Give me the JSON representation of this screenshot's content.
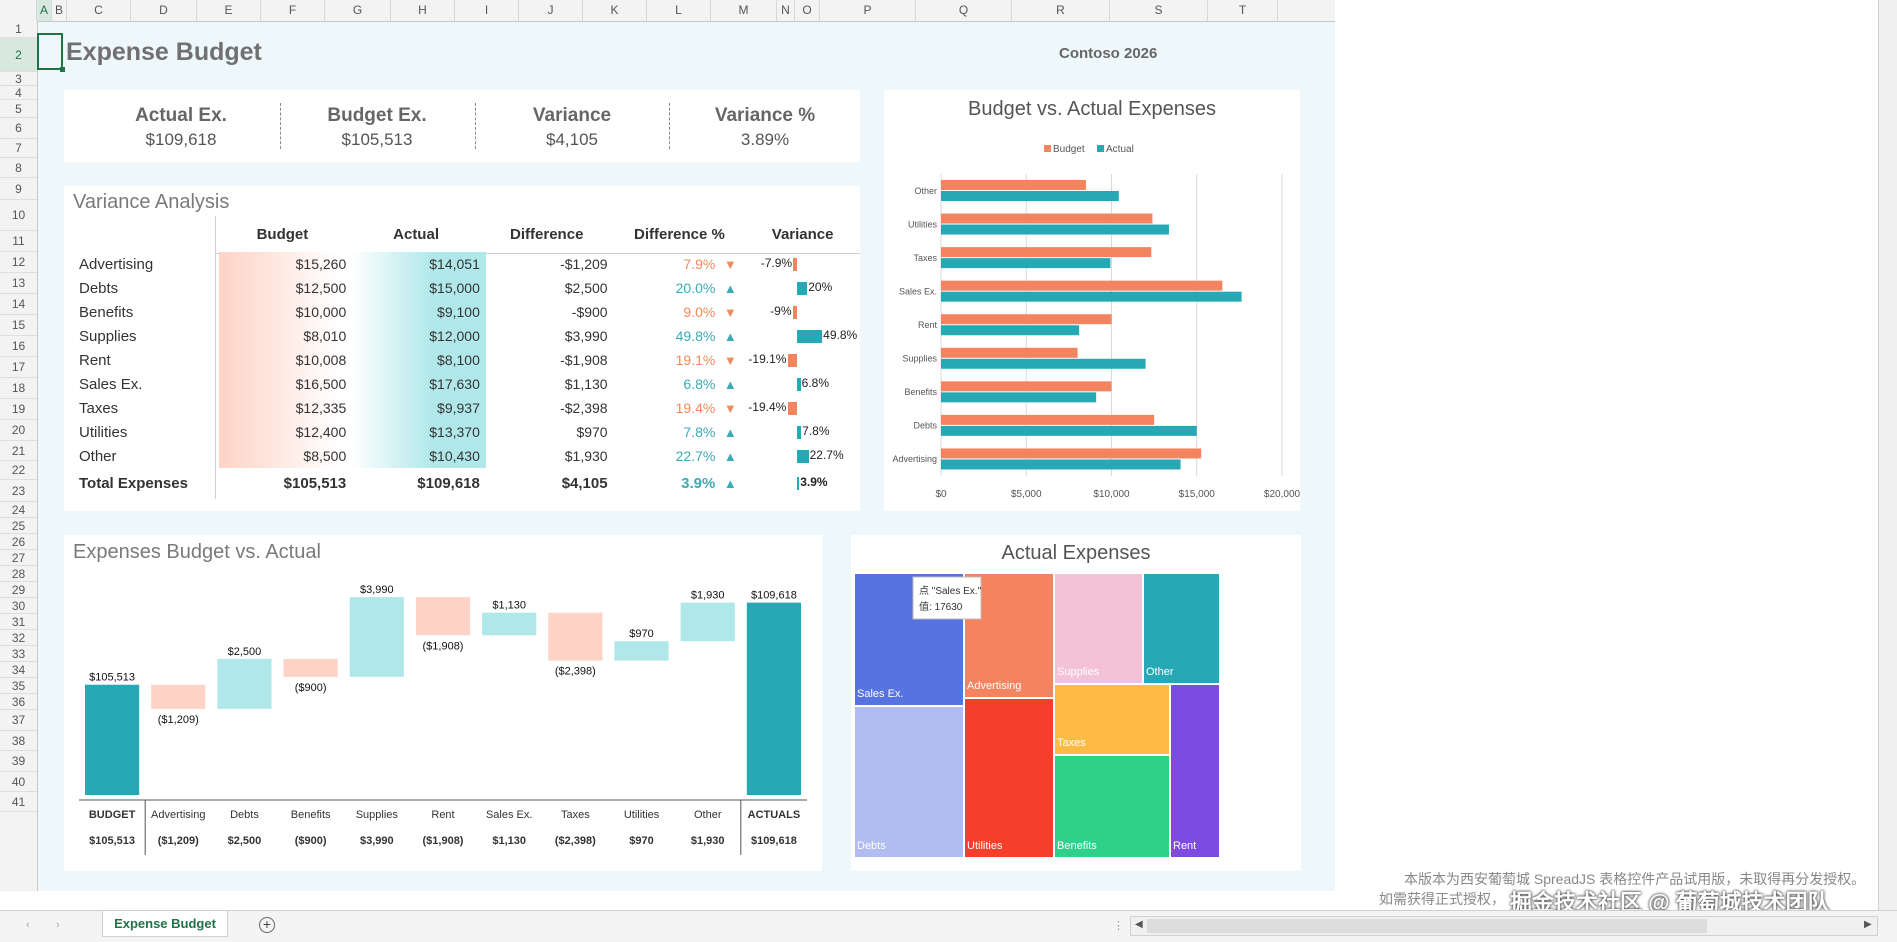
{
  "columns": [
    "A",
    "B",
    "C",
    "D",
    "E",
    "F",
    "G",
    "H",
    "I",
    "J",
    "K",
    "L",
    "M",
    "N",
    "O",
    "P",
    "Q",
    "R",
    "S",
    "T"
  ],
  "rows": [
    "1",
    "2",
    "3",
    "4",
    "5",
    "6",
    "7",
    "8",
    "9",
    "10",
    "11",
    "12",
    "13",
    "14",
    "15",
    "16",
    "17",
    "18",
    "19",
    "20",
    "21",
    "22",
    "23",
    "24",
    "25",
    "26",
    "27",
    "28",
    "29",
    "30",
    "31",
    "32",
    "33",
    "34",
    "35",
    "36",
    "37",
    "38",
    "39",
    "40",
    "41"
  ],
  "title": "Expense Budget",
  "subtitle": "Contoso 2026",
  "kpis": [
    {
      "label": "Actual Ex.",
      "value": "$109,618"
    },
    {
      "label": "Budget Ex.",
      "value": "$105,513"
    },
    {
      "label": "Variance",
      "value": "$4,105"
    },
    {
      "label": "Variance %",
      "value": "3.89%"
    }
  ],
  "variance_analysis": {
    "title": "Variance Analysis",
    "headers": [
      "Budget",
      "Actual",
      "Difference",
      "Difference %",
      "Variance"
    ],
    "rows": [
      {
        "name": "Advertising",
        "budget": "$15,260",
        "actual": "$14,051",
        "difference": "-$1,209",
        "pct": "7.9%",
        "dir": "down",
        "variance": "-7.9%",
        "vnum": -7.9
      },
      {
        "name": "Debts",
        "budget": "$12,500",
        "actual": "$15,000",
        "difference": "$2,500",
        "pct": "20.0%",
        "dir": "up",
        "variance": "20%",
        "vnum": 20.0
      },
      {
        "name": "Benefits",
        "budget": "$10,000",
        "actual": "$9,100",
        "difference": "-$900",
        "pct": "9.0%",
        "dir": "down",
        "variance": "-9%",
        "vnum": -9.0
      },
      {
        "name": "Supplies",
        "budget": "$8,010",
        "actual": "$12,000",
        "difference": "$3,990",
        "pct": "49.8%",
        "dir": "up",
        "variance": "49.8%",
        "vnum": 49.8
      },
      {
        "name": "Rent",
        "budget": "$10,008",
        "actual": "$8,100",
        "difference": "-$1,908",
        "pct": "19.1%",
        "dir": "down",
        "variance": "-19.1%",
        "vnum": -19.1
      },
      {
        "name": "Sales Ex.",
        "budget": "$16,500",
        "actual": "$17,630",
        "difference": "$1,130",
        "pct": "6.8%",
        "dir": "up",
        "variance": "6.8%",
        "vnum": 6.8
      },
      {
        "name": "Taxes",
        "budget": "$12,335",
        "actual": "$9,937",
        "difference": "-$2,398",
        "pct": "19.4%",
        "dir": "down",
        "variance": "-19.4%",
        "vnum": -19.4
      },
      {
        "name": "Utilities",
        "budget": "$12,400",
        "actual": "$13,370",
        "difference": "$970",
        "pct": "7.8%",
        "dir": "up",
        "variance": "7.8%",
        "vnum": 7.8
      },
      {
        "name": "Other",
        "budget": "$8,500",
        "actual": "$10,430",
        "difference": "$1,930",
        "pct": "22.7%",
        "dir": "up",
        "variance": "22.7%",
        "vnum": 22.7
      }
    ],
    "total": {
      "name": "Total Expenses",
      "budget": "$105,513",
      "actual": "$109,618",
      "difference": "$4,105",
      "pct": "3.9%",
      "dir": "up",
      "variance": "3.9%",
      "vnum": 3.9
    }
  },
  "sheet_tab": {
    "label": "Expense Budget"
  },
  "watermark": [
    "本版本为西安葡萄城 SpreadJS 表格控件产品试用版，未取得再分发授权。",
    "如需获得正式授权，",
    "掘金技术社区 @ 葡萄城技术团队"
  ],
  "chart_data": [
    {
      "type": "bar",
      "orientation": "horizontal",
      "title": "Budget vs. Actual Expenses",
      "legend_position": "top",
      "categories": [
        "Advertising",
        "Debts",
        "Benefits",
        "Supplies",
        "Rent",
        "Sales Ex.",
        "Taxes",
        "Utilities",
        "Other"
      ],
      "series": [
        {
          "name": "Budget",
          "color": "#f4845f",
          "values": [
            15260,
            12500,
            10000,
            8010,
            10008,
            16500,
            12335,
            12400,
            8500
          ]
        },
        {
          "name": "Actual",
          "color": "#26a9b5",
          "values": [
            14051,
            15000,
            9100,
            12000,
            8100,
            17630,
            9937,
            13370,
            10430
          ]
        }
      ],
      "xlim": [
        0,
        20000
      ],
      "xticks": [
        0,
        5000,
        10000,
        15000,
        20000
      ],
      "xtick_labels": [
        "$0",
        "$5,000",
        "$10,000",
        "$15,000",
        "$20,000"
      ],
      "grid": true
    },
    {
      "type": "waterfall",
      "title": "Expenses Budget vs. Actual",
      "categories": [
        "BUDGET",
        "Advertising",
        "Debts",
        "Benefits",
        "Supplies",
        "Rent",
        "Sales Ex.",
        "Taxes",
        "Utilities",
        "Other",
        "ACTUALS"
      ],
      "values": [
        105513,
        -1209,
        2500,
        -900,
        3990,
        -1908,
        1130,
        -2398,
        970,
        1930,
        109618
      ],
      "kinds": [
        "total",
        "delta",
        "delta",
        "delta",
        "delta",
        "delta",
        "delta",
        "delta",
        "delta",
        "delta",
        "total"
      ],
      "labels": [
        "$105,513",
        "($1,209)",
        "$2,500",
        "($900)",
        "$3,990",
        "($1,908)",
        "$1,130",
        "($2,398)",
        "$970",
        "$1,930",
        "$109,618"
      ],
      "axis_values": [
        "$105,513",
        "($1,209)",
        "$2,500",
        "($900)",
        "$3,990",
        "($1,908)",
        "$1,130",
        "($2,398)",
        "$970",
        "$1,930",
        "$109,618"
      ],
      "ylim": [
        100000,
        110500
      ],
      "colors": {
        "total": "#26a9b5",
        "increase": "#b0e8ea",
        "decrease": "#fdd3c5"
      }
    },
    {
      "type": "treemap",
      "title": "Actual Expenses",
      "items": [
        {
          "name": "Sales Ex.",
          "value": 17630,
          "color": "#5673e0"
        },
        {
          "name": "Advertising",
          "value": 14051,
          "color": "#f4845f"
        },
        {
          "name": "Supplies",
          "value": 12000,
          "color": "#f4c2d7"
        },
        {
          "name": "Other",
          "value": 10430,
          "color": "#26a9b5"
        },
        {
          "name": "Taxes",
          "value": 9937,
          "color": "#fdba45"
        },
        {
          "name": "Rent",
          "value": 8100,
          "color": "#7e4be0"
        },
        {
          "name": "Debts",
          "value": 15000,
          "color": "#b1bcf0"
        },
        {
          "name": "Utilities",
          "value": 13370,
          "color": "#f53f2b"
        },
        {
          "name": "Benefits",
          "value": 9100,
          "color": "#2fd08a"
        }
      ],
      "tooltip": {
        "line1": "点 \"Sales Ex.\"",
        "line2": "值: 17630"
      }
    }
  ]
}
